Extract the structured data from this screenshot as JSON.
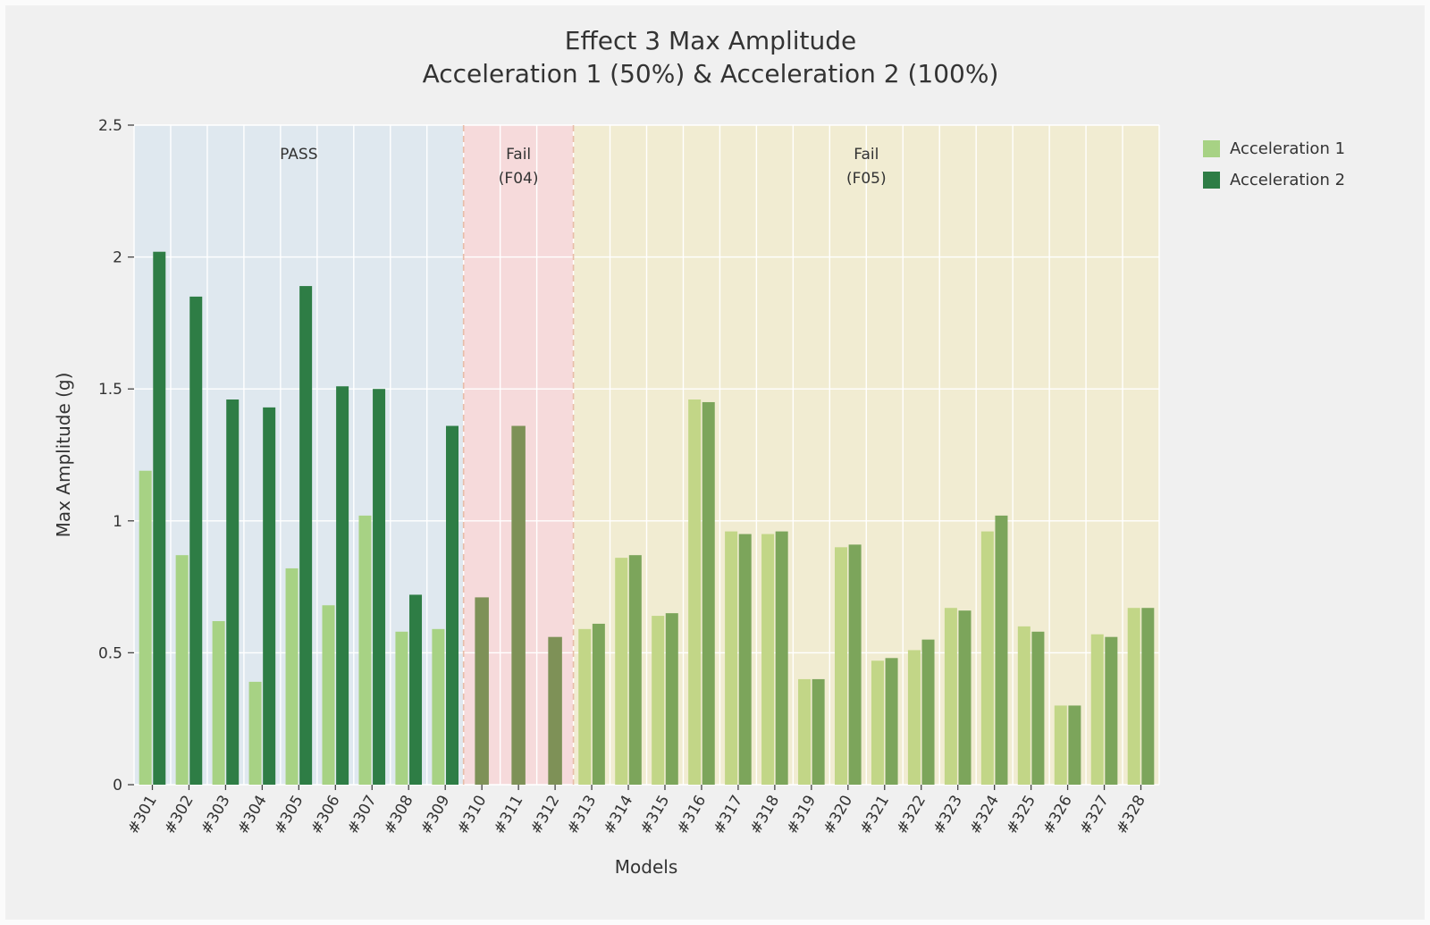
{
  "figure": {
    "background": "#f0f0f0",
    "page_background": "#fbfbfb"
  },
  "title": {
    "line1": "Effect 3 Max Amplitude",
    "line2": "Acceleration 1 (50%) & Acceleration 2 (100%)"
  },
  "axes": {
    "x_label": "Models",
    "y_label": "Max Amplitude (g)",
    "y_ticks": [
      {
        "value": 0,
        "label": "0"
      },
      {
        "value": 0.5,
        "label": "0.5"
      },
      {
        "value": 1,
        "label": "1"
      },
      {
        "value": 1.5,
        "label": "1.5"
      },
      {
        "value": 2,
        "label": "2"
      },
      {
        "value": 2.5,
        "label": "2.5"
      }
    ]
  },
  "legend": {
    "entries": [
      {
        "label": "Acceleration 1",
        "color": "#a7d284"
      },
      {
        "label": "Acceleration 2",
        "color": "#2e7d45"
      }
    ]
  },
  "chart_data": {
    "type": "bar",
    "title": "Effect 3 Max Amplitude\nAcceleration 1 (50%) & Acceleration 2 (100%)",
    "xlabel": "Models",
    "ylabel": "Max Amplitude (g)",
    "ylim": [
      0,
      2.5
    ],
    "grid": true,
    "legend_position": "upper right, outside plot",
    "categories": [
      "#301",
      "#302",
      "#303",
      "#304",
      "#305",
      "#306",
      "#307",
      "#308",
      "#309",
      "#310",
      "#311",
      "#312",
      "#313",
      "#314",
      "#315",
      "#316",
      "#317",
      "#318",
      "#319",
      "#320",
      "#321",
      "#322",
      "#323",
      "#324",
      "#325",
      "#326",
      "#327",
      "#328"
    ],
    "series": [
      {
        "name": "Acceleration 1",
        "values": [
          1.19,
          0.87,
          0.62,
          0.39,
          0.82,
          0.68,
          1.02,
          0.58,
          0.59,
          null,
          null,
          null,
          0.59,
          0.86,
          0.64,
          1.46,
          0.96,
          0.95,
          0.4,
          0.9,
          0.47,
          0.51,
          0.67,
          0.96,
          0.6,
          0.3,
          0.57,
          0.67
        ]
      },
      {
        "name": "Acceleration 2",
        "values": [
          2.02,
          1.85,
          1.46,
          1.43,
          1.89,
          1.51,
          1.5,
          0.72,
          1.36,
          0.71,
          1.36,
          0.56,
          0.61,
          0.87,
          0.65,
          1.45,
          0.95,
          0.96,
          0.4,
          0.91,
          0.48,
          0.55,
          0.66,
          1.02,
          0.58,
          0.3,
          0.56,
          0.67
        ]
      }
    ],
    "zones": [
      {
        "label": "PASS",
        "label2": "",
        "start": 0,
        "end": 9,
        "background": "#dfe8ef",
        "series1_color": "#a7d284",
        "series2_color": "#2e7d45"
      },
      {
        "label": "Fail",
        "label2": "(F04)",
        "start": 9,
        "end": 12,
        "background": "#f6dadb",
        "series1_color": "#b9b786",
        "series2_color": "#7e9157"
      },
      {
        "label": "Fail",
        "label2": "(F05)",
        "start": 12,
        "end": 28,
        "background": "#f1ecd2",
        "series1_color": "#c2d687",
        "series2_color": "#7ca55b"
      }
    ],
    "zone_boundary_line_color": "#dd9b7a"
  }
}
